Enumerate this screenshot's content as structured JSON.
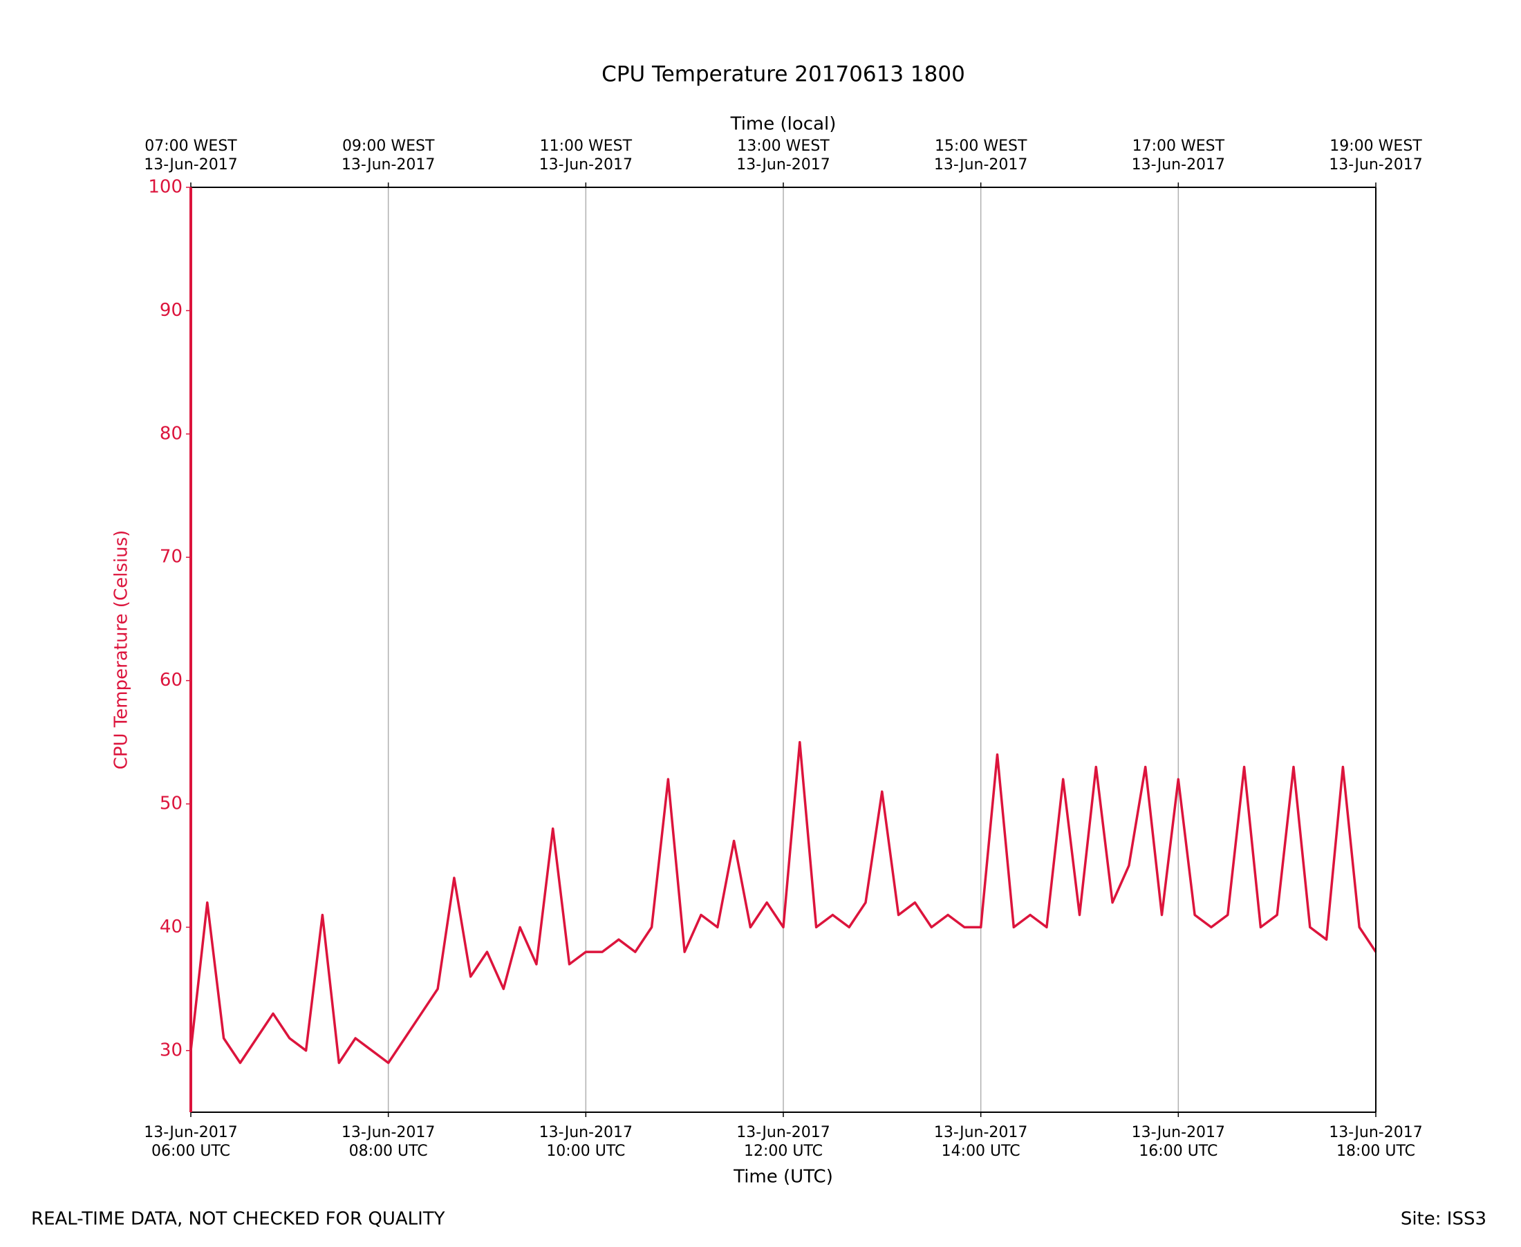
{
  "chart_data": {
    "type": "line",
    "title": "CPU Temperature 20170613 1800",
    "x_label": "Time (UTC)",
    "x2_label": "Time (local)",
    "y_label": "CPU Temperature (Celsius)",
    "footer_left": "REAL-TIME DATA, NOT CHECKED FOR QUALITY",
    "footer_right": "Site: ISS3",
    "x": [
      "06:00",
      "06:10",
      "06:20",
      "06:30",
      "06:40",
      "06:50",
      "07:00",
      "07:10",
      "07:20",
      "07:30",
      "07:40",
      "07:50",
      "08:00",
      "08:10",
      "08:20",
      "08:30",
      "08:40",
      "08:50",
      "09:00",
      "09:10",
      "09:20",
      "09:30",
      "09:40",
      "09:50",
      "10:00",
      "10:10",
      "10:20",
      "10:30",
      "10:40",
      "10:50",
      "11:00",
      "11:10",
      "11:20",
      "11:30",
      "11:40",
      "11:50",
      "12:00",
      "12:10",
      "12:20",
      "12:30",
      "12:40",
      "12:50",
      "13:00",
      "13:10",
      "13:20",
      "13:30",
      "13:40",
      "13:50",
      "14:00",
      "14:10",
      "14:20",
      "14:30",
      "14:40",
      "14:50",
      "15:00",
      "15:10",
      "15:20",
      "15:30",
      "15:40",
      "15:50",
      "16:00",
      "16:10",
      "16:20",
      "16:30",
      "16:40",
      "16:50",
      "17:00",
      "17:10",
      "17:20",
      "17:30",
      "17:40",
      "17:50",
      "18:00"
    ],
    "series": [
      {
        "name": "CPU Temperature",
        "color": "#dc143c",
        "values": [
          30,
          42,
          31,
          29,
          31,
          33,
          31,
          30,
          41,
          29,
          31,
          30,
          29,
          31,
          33,
          35,
          44,
          36,
          38,
          35,
          40,
          37,
          48,
          37,
          38,
          38,
          39,
          38,
          40,
          52,
          38,
          41,
          40,
          47,
          40,
          42,
          40,
          55,
          40,
          41,
          40,
          42,
          51,
          41,
          42,
          40,
          41,
          40,
          40,
          54,
          40,
          41,
          40,
          52,
          41,
          53,
          42,
          45,
          53,
          41,
          52,
          41,
          40,
          41,
          53,
          40,
          41,
          53,
          40,
          39,
          53,
          40,
          38
        ]
      }
    ],
    "xlim": [
      "06:00",
      "18:00"
    ],
    "xticks": [
      {
        "value": "06:00",
        "label": [
          "13-Jun-2017",
          "06:00 UTC"
        ]
      },
      {
        "value": "08:00",
        "label": [
          "13-Jun-2017",
          "08:00 UTC"
        ]
      },
      {
        "value": "10:00",
        "label": [
          "13-Jun-2017",
          "10:00 UTC"
        ]
      },
      {
        "value": "12:00",
        "label": [
          "13-Jun-2017",
          "12:00 UTC"
        ]
      },
      {
        "value": "14:00",
        "label": [
          "13-Jun-2017",
          "14:00 UTC"
        ]
      },
      {
        "value": "16:00",
        "label": [
          "13-Jun-2017",
          "16:00 UTC"
        ]
      },
      {
        "value": "18:00",
        "label": [
          "13-Jun-2017",
          "18:00 UTC"
        ]
      }
    ],
    "x2ticks": [
      {
        "value": "06:00",
        "label": [
          "07:00 WEST",
          "13-Jun-2017"
        ]
      },
      {
        "value": "08:00",
        "label": [
          "09:00 WEST",
          "13-Jun-2017"
        ]
      },
      {
        "value": "10:00",
        "label": [
          "11:00 WEST",
          "13-Jun-2017"
        ]
      },
      {
        "value": "12:00",
        "label": [
          "13:00 WEST",
          "13-Jun-2017"
        ]
      },
      {
        "value": "14:00",
        "label": [
          "15:00 WEST",
          "13-Jun-2017"
        ]
      },
      {
        "value": "16:00",
        "label": [
          "17:00 WEST",
          "13-Jun-2017"
        ]
      },
      {
        "value": "18:00",
        "label": [
          "19:00 WEST",
          "13-Jun-2017"
        ]
      }
    ],
    "ylim": [
      25,
      100
    ],
    "yticks": [
      30,
      40,
      50,
      60,
      70,
      80,
      90,
      100
    ],
    "grid": true
  }
}
